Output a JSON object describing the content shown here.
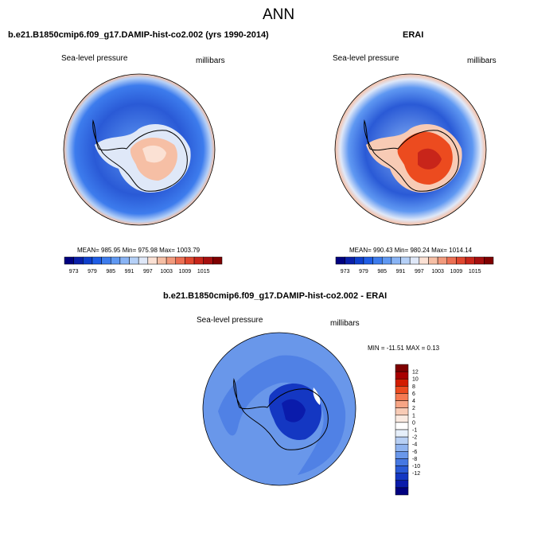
{
  "main_title": "ANN",
  "panels": [
    {
      "title": "b.e21.B1850cmip6.f09_g17.DAMIP-hist-co2.002 (yrs 1990-2014)",
      "left_label": "Sea-level pressure",
      "right_label": "millibars",
      "stats": "MEAN= 985.95  Min= 975.98  Max= 1003.79"
    },
    {
      "title": "ERAI",
      "left_label": "Sea-level pressure",
      "right_label": "millibars",
      "stats": "MEAN= 990.43  Min= 980.24  Max= 1014.14"
    },
    {
      "title": "b.e21.B1850cmip6.f09_g17.DAMIP-hist-co2.002 - ERAI",
      "left_label": "Sea-level pressure",
      "right_label": "millibars",
      "stats": "MIN = -11.51 MAX =   0.13"
    }
  ],
  "colorbar_abs": {
    "colors": [
      "#00007f",
      "#0a1fa8",
      "#0f3fcc",
      "#1f5de6",
      "#3d7ced",
      "#5f98f2",
      "#89b4f5",
      "#b5d0f7",
      "#dfe8f8",
      "#fbe1d4",
      "#f6bfa5",
      "#f29a7c",
      "#ec6f53",
      "#e0472f",
      "#c8251a",
      "#a60f0f",
      "#7f0000"
    ],
    "labels": [
      "973",
      "979",
      "985",
      "991",
      "997",
      "1003",
      "1009",
      "1015"
    ]
  },
  "colorbar_diff": {
    "colors": [
      "#7f0000",
      "#a80000",
      "#d21c00",
      "#ec4b1f",
      "#f57a52",
      "#f7a585",
      "#f8cbb5",
      "#faeae1",
      "#ffffff",
      "#e6effa",
      "#b7cff4",
      "#8fb3ef",
      "#6997ea",
      "#4678e2",
      "#2a5ad6",
      "#1437c2",
      "#0a1bab",
      "#000080"
    ],
    "labels": [
      "12",
      "10",
      "8",
      "6",
      "4",
      "2",
      "1",
      "0",
      "-1",
      "-2",
      "-4",
      "-6",
      "-8",
      "-10",
      "-12"
    ]
  }
}
